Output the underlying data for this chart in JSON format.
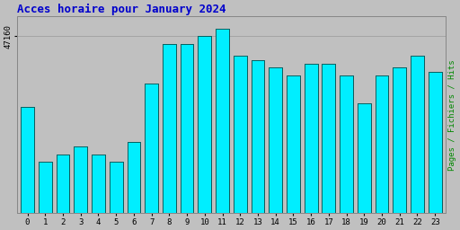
{
  "title": "Acces horaire pour January 2024",
  "categories": [
    0,
    1,
    2,
    3,
    4,
    5,
    6,
    7,
    8,
    9,
    10,
    11,
    12,
    13,
    14,
    15,
    16,
    17,
    18,
    19,
    20,
    21,
    22,
    23
  ],
  "values": [
    47142,
    47128,
    47130,
    47132,
    47130,
    47128,
    47133,
    47148,
    47158,
    47158,
    47160,
    47162,
    47155,
    47154,
    47152,
    47150,
    47153,
    47153,
    47150,
    47143,
    47150,
    47152,
    47155,
    47151
  ],
  "bar_fill_color": "#00EEFF",
  "bar_left_edge_color": "#008888",
  "bar_right_edge_color": "#004444",
  "background_color": "#C0C0C0",
  "plot_bg_color": "#C0C0C0",
  "title_color": "#0000CC",
  "title_fontsize": 9,
  "ylabel_right": "Pages / Fichiers / Hits",
  "ylabel_right_color": "#008800",
  "tick_color": "#000000",
  "ytick_label": "47160",
  "ytick_val": 47160,
  "ylim_min": 47115,
  "ylim_max": 47165,
  "bar_bottom": 47115
}
